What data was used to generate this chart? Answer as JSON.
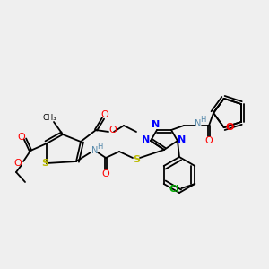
{
  "bg_color": "#efefef",
  "bond_lw": 1.3,
  "figsize": [
    3.0,
    3.0
  ],
  "dpi": 100,
  "xlim": [
    0,
    300
  ],
  "ylim": [
    0,
    300
  ]
}
